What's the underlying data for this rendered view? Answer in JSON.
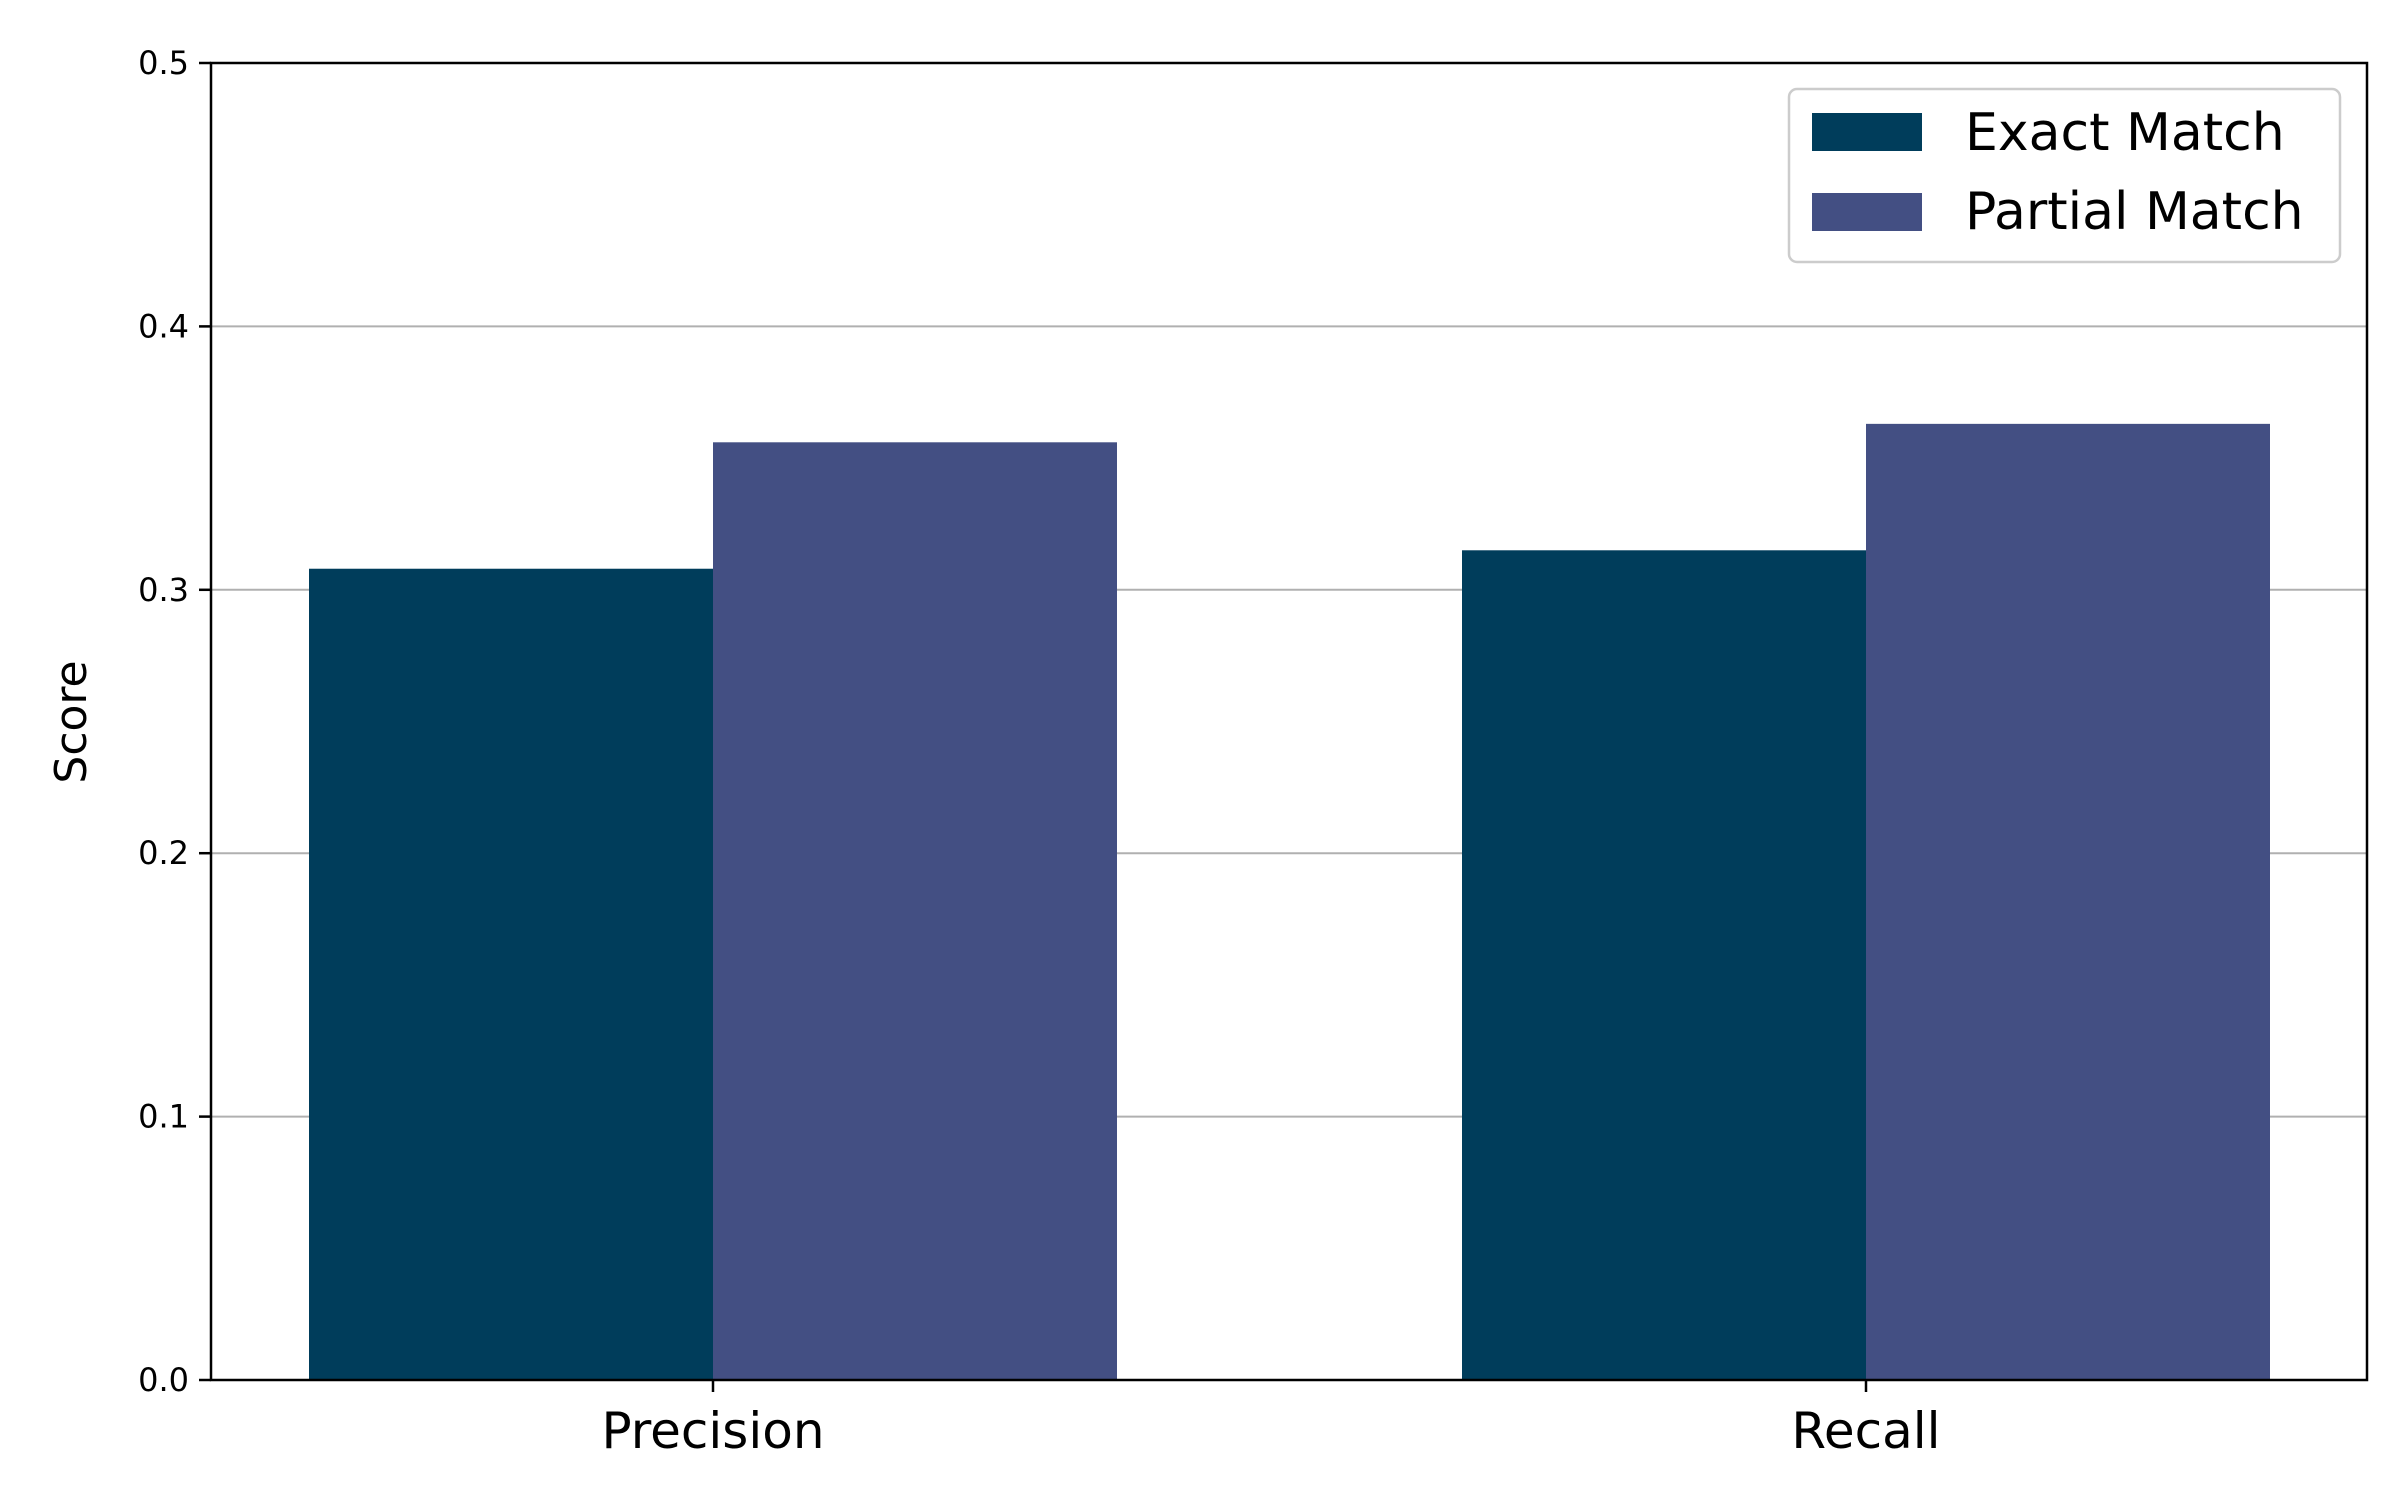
{
  "chart_data": {
    "type": "bar",
    "categories": [
      "Precision",
      "Recall"
    ],
    "series": [
      {
        "name": "Exact Match",
        "color": "#003d5b",
        "values": [
          0.308,
          0.315
        ]
      },
      {
        "name": "Partial Match",
        "color": "#434f83",
        "values": [
          0.356,
          0.363
        ]
      }
    ],
    "title": "",
    "xlabel": "",
    "ylabel": "Score",
    "ylim": [
      0,
      0.5
    ],
    "yticks": [
      "0.0",
      "0.1",
      "0.2",
      "0.3",
      "0.4",
      "0.5"
    ],
    "grid": "horizontal",
    "legend_position": "top-right"
  }
}
